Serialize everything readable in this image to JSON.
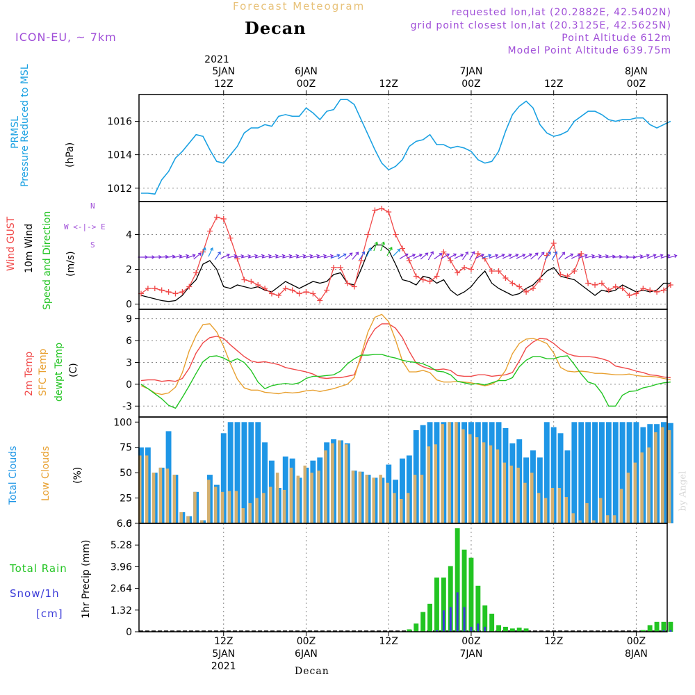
{
  "header": {
    "title_top": "Forecast Meteogram",
    "title": "Decan",
    "model": "ICON-EU, ~ 7km",
    "requested": "requested lon,lat (20.2882E, 42.5402N)",
    "grid_point": "grid point closest lon,lat (20.3125E, 42.5625N)",
    "point_altitude": "Point Altitude 612m",
    "model_altitude": "Model Point Altitude 639.75m"
  },
  "time_axis": {
    "top_year": "2021",
    "ticks": [
      {
        "hour": 12,
        "line1": "5JAN",
        "line2": "12Z",
        "bottom1": "12Z",
        "bottom2": "5JAN",
        "bottom3": "2021"
      },
      {
        "hour": 24,
        "line1": "6JAN",
        "line2": "00Z",
        "bottom1": "00Z",
        "bottom2": "6JAN",
        "bottom3": ""
      },
      {
        "hour": 36,
        "line1": "",
        "line2": "12Z",
        "bottom1": "12Z",
        "bottom2": "",
        "bottom3": ""
      },
      {
        "hour": 48,
        "line1": "7JAN",
        "line2": "00Z",
        "bottom1": "00Z",
        "bottom2": "7JAN",
        "bottom3": ""
      },
      {
        "hour": 60,
        "line1": "",
        "line2": "12Z",
        "bottom1": "12Z",
        "bottom2": "",
        "bottom3": ""
      },
      {
        "hour": 72,
        "line1": "8JAN",
        "line2": "00Z",
        "bottom1": "00Z",
        "bottom2": "8JAN",
        "bottom3": ""
      }
    ]
  },
  "panels": {
    "pressure": {
      "label1": "PRMSL",
      "label2": "Pressure Reduced to MSL",
      "unit": "(hPa)"
    },
    "wind": {
      "label_gust": "Wind GUST",
      "label_10m": "10m Wind",
      "label_speed": "Speed and Direction",
      "unit": "(m/s)",
      "compass_n": "N",
      "compass_s": "S",
      "compass_we": "W <-|-> E"
    },
    "temp": {
      "label_2m": "2m Temp",
      "label_sfc": "SFC Temp",
      "label_dew": "dewpt Temp",
      "unit": "(C)"
    },
    "clouds": {
      "label_total": "Total Clouds",
      "label_low": "Low Clouds",
      "unit": "(%)"
    },
    "precip": {
      "label_rain": "Total  Rain",
      "label_snow": "Snow/1h",
      "label_cm": "[cm]",
      "unit": "1hr Precip (mm)"
    }
  },
  "footer": {
    "location": "Decan"
  },
  "watermark": "by Angel",
  "colors": {
    "pressure": "#1ba1e2",
    "gust": "#f04848",
    "wind10": "#000000",
    "t2m": "#f04848",
    "sfc": "#e8a030",
    "dew": "#22c422",
    "total_cloud": "#1e96e6",
    "low_cloud": "#d4b070",
    "rain": "#22c422",
    "snow": "#3a3ad8",
    "arrow": "#7a2ad8",
    "info": "#a04fd8"
  },
  "chart_data": [
    {
      "type": "line",
      "title": "PRMSL Pressure Reduced to MSL",
      "ylabel": "hPa",
      "ylim": [
        1011.2,
        1017.6
      ],
      "yticks": [
        1012,
        1014,
        1016
      ],
      "x_start_hour": 0,
      "x_step_hours": 1,
      "series": [
        {
          "name": "PRMSL",
          "values": [
            1011.7,
            1011.7,
            1011.65,
            1012.5,
            1013.0,
            1013.8,
            1014.2,
            1014.7,
            1015.2,
            1015.1,
            1014.3,
            1013.6,
            1013.5,
            1014.0,
            1014.5,
            1015.3,
            1015.6,
            1015.6,
            1015.8,
            1015.7,
            1016.3,
            1016.4,
            1016.3,
            1016.3,
            1016.8,
            1016.5,
            1016.1,
            1016.6,
            1016.7,
            1017.3,
            1017.3,
            1017.0,
            1016.1,
            1015.2,
            1014.3,
            1013.5,
            1013.1,
            1013.3,
            1013.7,
            1014.5,
            1014.8,
            1014.9,
            1015.2,
            1014.6,
            1014.6,
            1014.4,
            1014.5,
            1014.4,
            1014.2,
            1013.7,
            1013.5,
            1013.6,
            1014.2,
            1015.4,
            1016.4,
            1016.9,
            1017.2,
            1016.8,
            1015.8,
            1015.3,
            1015.1,
            1015.2,
            1015.4,
            1016.0,
            1016.3,
            1016.6,
            1016.6,
            1016.4,
            1016.1,
            1016.0,
            1016.1,
            1016.1,
            1016.2,
            1016.2,
            1015.8,
            1015.6,
            1015.8,
            1016.0
          ]
        }
      ]
    },
    {
      "type": "line",
      "title": "Wind GUST / 10m Wind Speed",
      "ylabel": "m/s",
      "ylim": [
        -0.3,
        5.9
      ],
      "yticks": [
        0,
        2,
        4
      ],
      "x_start_hour": 0,
      "x_step_hours": 1,
      "series": [
        {
          "name": "Wind GUST",
          "values": [
            0.6,
            0.9,
            0.9,
            0.8,
            0.7,
            0.6,
            0.7,
            1.0,
            1.8,
            3.0,
            4.2,
            5.0,
            4.9,
            3.8,
            2.6,
            1.4,
            1.3,
            1.1,
            0.9,
            0.6,
            0.5,
            0.9,
            0.8,
            0.6,
            0.7,
            0.6,
            0.2,
            0.8,
            2.1,
            2.1,
            1.2,
            1.0,
            2.5,
            4.0,
            5.4,
            5.5,
            5.3,
            4.0,
            3.2,
            2.5,
            1.6,
            1.4,
            1.3,
            1.6,
            3.0,
            2.5,
            1.8,
            2.1,
            2.0,
            2.9,
            2.6,
            1.9,
            1.9,
            1.5,
            1.2,
            1.0,
            0.7,
            0.9,
            1.4,
            2.8,
            3.5,
            1.7,
            1.6,
            1.9,
            2.9,
            1.2,
            1.1,
            1.2,
            0.8,
            1.0,
            0.9,
            0.5,
            0.6,
            0.9,
            0.8,
            0.7,
            0.8,
            1.1
          ]
        },
        {
          "name": "10m Wind",
          "values": [
            0.5,
            0.4,
            0.3,
            0.2,
            0.15,
            0.2,
            0.5,
            1.0,
            1.4,
            2.3,
            2.5,
            2.0,
            1.0,
            0.9,
            1.1,
            1.0,
            0.9,
            1.0,
            0.8,
            0.7,
            1.0,
            1.3,
            1.1,
            0.9,
            1.1,
            1.3,
            1.2,
            1.3,
            1.7,
            1.8,
            1.2,
            1.1,
            2.0,
            3.0,
            3.4,
            3.4,
            3.1,
            2.3,
            1.4,
            1.3,
            1.1,
            1.6,
            1.5,
            1.2,
            1.4,
            0.8,
            0.5,
            0.7,
            1.0,
            1.5,
            1.9,
            1.2,
            0.9,
            0.7,
            0.5,
            0.6,
            0.9,
            1.1,
            1.5,
            1.9,
            2.1,
            1.6,
            1.5,
            1.4,
            1.1,
            0.8,
            0.5,
            0.8,
            0.7,
            0.8,
            1.1,
            0.9,
            0.7,
            0.8,
            0.7,
            0.8,
            1.2,
            1.2
          ]
        }
      ],
      "arrows": {
        "name": "Wind Direction",
        "values_deg": [
          270,
          270,
          268,
          266,
          262,
          258,
          255,
          250,
          230,
          200,
          205,
          215,
          245,
          255,
          258,
          258,
          255,
          255,
          255,
          255,
          255,
          255,
          255,
          255,
          255,
          255,
          255,
          255,
          250,
          240,
          230,
          220,
          212,
          205,
          200,
          200,
          210,
          225,
          240,
          245,
          245,
          230,
          210,
          235,
          240,
          240,
          245,
          215,
          210,
          245,
          250,
          250,
          245,
          245,
          245,
          245,
          240,
          230,
          220,
          215,
          210,
          220,
          240,
          245,
          250,
          255,
          255,
          258,
          262,
          265,
          268,
          270,
          258,
          250,
          248,
          250,
          252,
          255
        ]
      }
    },
    {
      "type": "line",
      "title": "2m Temp / SFC Temp / dewpt Temp",
      "ylabel": "C",
      "ylim": [
        -4.5,
        10.3
      ],
      "yticks": [
        -3,
        0,
        3,
        6,
        9
      ],
      "x_start_hour": 0,
      "x_step_hours": 1,
      "series": [
        {
          "name": "2m Temp",
          "values": [
            0.5,
            0.6,
            0.6,
            0.4,
            0.5,
            0.4,
            0.8,
            2.2,
            4.3,
            5.7,
            6.4,
            6.6,
            6.3,
            5.4,
            4.6,
            3.8,
            3.2,
            3.0,
            3.1,
            2.9,
            2.7,
            2.3,
            2.1,
            1.9,
            1.7,
            1.4,
            0.9,
            0.8,
            0.9,
            0.9,
            1.1,
            1.3,
            3.6,
            6.1,
            7.6,
            8.3,
            8.3,
            7.7,
            6.4,
            4.5,
            2.9,
            2.4,
            2.1,
            2.0,
            2.1,
            1.9,
            1.2,
            1.1,
            1.1,
            1.3,
            1.3,
            1.1,
            1.2,
            1.3,
            1.6,
            3.2,
            5.0,
            5.8,
            6.3,
            6.2,
            5.6,
            4.8,
            4.2,
            3.9,
            3.8,
            3.8,
            3.7,
            3.5,
            3.2,
            2.5,
            2.3,
            2.1,
            1.8,
            1.6,
            1.3,
            1.2,
            1.0,
            0.9
          ]
        },
        {
          "name": "SFC Temp",
          "values": [
            -0.2,
            -0.6,
            -1.2,
            -1.4,
            -1.2,
            -0.4,
            1.6,
            4.6,
            6.7,
            8.2,
            8.3,
            7.2,
            5.2,
            2.8,
            0.7,
            -0.5,
            -0.8,
            -0.8,
            -1.1,
            -1.2,
            -1.3,
            -1.1,
            -1.2,
            -1.1,
            -0.9,
            -0.8,
            -1.0,
            -0.8,
            -0.6,
            -0.3,
            0.0,
            0.9,
            4.0,
            7.2,
            9.2,
            9.6,
            8.6,
            6.1,
            3.2,
            1.7,
            1.7,
            1.9,
            1.6,
            0.6,
            0.3,
            0.3,
            0.4,
            0.3,
            0.2,
            0.0,
            -0.2,
            0.0,
            0.6,
            1.9,
            4.2,
            5.6,
            6.2,
            6.3,
            6.0,
            5.6,
            4.3,
            2.3,
            1.8,
            1.7,
            1.8,
            1.7,
            1.5,
            1.5,
            1.4,
            1.3,
            1.3,
            1.4,
            1.2,
            1.1,
            1.1,
            1.0,
            0.8,
            0.6
          ]
        },
        {
          "name": "dewpt Temp",
          "values": [
            0.0,
            -0.6,
            -1.3,
            -2.0,
            -2.9,
            -3.3,
            -1.8,
            -0.2,
            1.5,
            3.1,
            3.8,
            3.9,
            3.6,
            3.1,
            3.5,
            3.0,
            1.9,
            0.3,
            -0.6,
            -0.2,
            0.0,
            0.1,
            0.0,
            0.2,
            0.8,
            1.1,
            1.1,
            1.2,
            1.3,
            1.8,
            2.8,
            3.5,
            4.0,
            4.0,
            4.1,
            4.1,
            3.8,
            3.6,
            3.3,
            3.1,
            3.0,
            2.8,
            2.4,
            1.8,
            1.7,
            1.3,
            0.4,
            0.2,
            0.0,
            0.1,
            -0.1,
            0.2,
            0.5,
            0.5,
            0.9,
            2.4,
            3.3,
            3.8,
            3.8,
            3.5,
            3.5,
            3.8,
            3.9,
            2.7,
            1.4,
            0.3,
            0.0,
            -1.2,
            -3.0,
            -3.0,
            -1.5,
            -1.0,
            -0.9,
            -0.5,
            -0.3,
            0.0,
            0.2,
            0.3
          ]
        }
      ]
    },
    {
      "type": "bar",
      "title": "Total Clouds / Low Clouds",
      "ylabel": "%",
      "ylim": [
        0,
        105
      ],
      "yticks": [
        0,
        25,
        50,
        75,
        100
      ],
      "x_start_hour": 0,
      "x_step_hours": 1,
      "series": [
        {
          "name": "Total Clouds",
          "values": [
            75,
            75,
            50,
            55,
            91,
            48,
            11,
            7,
            31,
            3,
            48,
            38,
            89,
            100,
            100,
            100,
            100,
            100,
            80,
            62,
            35,
            66,
            64,
            45,
            55,
            62,
            65,
            80,
            83,
            82,
            79,
            52,
            51,
            48,
            45,
            45,
            58,
            43,
            64,
            67,
            92,
            97,
            100,
            100,
            100,
            100,
            100,
            100,
            100,
            100,
            100,
            100,
            100,
            94,
            79,
            83,
            65,
            72,
            65,
            100,
            95,
            89,
            72,
            100,
            100,
            100,
            100,
            100,
            100,
            100,
            100,
            100,
            100,
            95,
            98,
            98,
            100,
            99
          ]
        },
        {
          "name": "Low Clouds",
          "values": [
            67,
            67,
            50,
            55,
            54,
            48,
            11,
            7,
            31,
            3,
            43,
            36,
            31,
            32,
            32,
            15,
            20,
            25,
            30,
            36,
            50,
            33,
            55,
            47,
            57,
            50,
            52,
            72,
            79,
            82,
            78,
            52,
            51,
            48,
            45,
            48,
            40,
            30,
            24,
            30,
            48,
            48,
            76,
            78,
            98,
            100,
            100,
            93,
            88,
            85,
            80,
            77,
            73,
            60,
            57,
            55,
            40,
            50,
            30,
            25,
            35,
            35,
            26,
            10,
            3,
            20,
            3,
            25,
            8,
            8,
            34,
            50,
            60,
            70,
            75,
            90,
            95,
            92
          ]
        }
      ]
    },
    {
      "type": "bar",
      "title": "1hr Precip Total Rain / Snow",
      "ylabel": "1hr Precip (mm)",
      "ylim": [
        0,
        6.6
      ],
      "yticks": [
        0,
        1.32,
        2.64,
        3.96,
        5.28,
        6.6
      ],
      "x_start_hour": 0,
      "x_step_hours": 1,
      "series": [
        {
          "name": "Total Rain",
          "values": [
            0,
            0,
            0,
            0,
            0,
            0,
            0,
            0,
            0,
            0,
            0,
            0,
            0,
            0,
            0,
            0,
            0,
            0,
            0,
            0,
            0,
            0,
            0,
            0,
            0,
            0,
            0,
            0,
            0,
            0,
            0,
            0,
            0,
            0,
            0,
            0,
            0,
            0,
            0,
            0.15,
            0.5,
            1.2,
            1.7,
            3.3,
            3.3,
            4.0,
            6.3,
            5.0,
            4.5,
            2.8,
            1.6,
            1.1,
            0.4,
            0.3,
            0.2,
            0.25,
            0.2,
            0,
            0,
            0,
            0,
            0,
            0,
            0,
            0,
            0,
            0,
            0,
            0,
            0,
            0,
            0,
            0,
            0.1,
            0.4,
            0.6,
            0.6,
            0.6
          ]
        },
        {
          "name": "Snow/1h",
          "values": [
            0,
            0,
            0,
            0,
            0,
            0,
            0,
            0,
            0,
            0,
            0,
            0,
            0,
            0,
            0,
            0,
            0,
            0,
            0,
            0,
            0,
            0,
            0,
            0,
            0,
            0,
            0,
            0,
            0,
            0,
            0,
            0,
            0,
            0,
            0,
            0,
            0,
            0,
            0,
            0,
            0,
            0,
            0,
            0.1,
            1.3,
            1.5,
            2.4,
            1.5,
            0.3,
            0.5,
            0.3,
            0,
            0,
            0,
            0,
            0,
            0,
            0,
            0,
            0,
            0,
            0,
            0,
            0,
            0,
            0,
            0,
            0,
            0,
            0,
            0,
            0,
            0,
            0,
            0,
            0,
            0.1,
            0.1
          ]
        }
      ]
    }
  ]
}
